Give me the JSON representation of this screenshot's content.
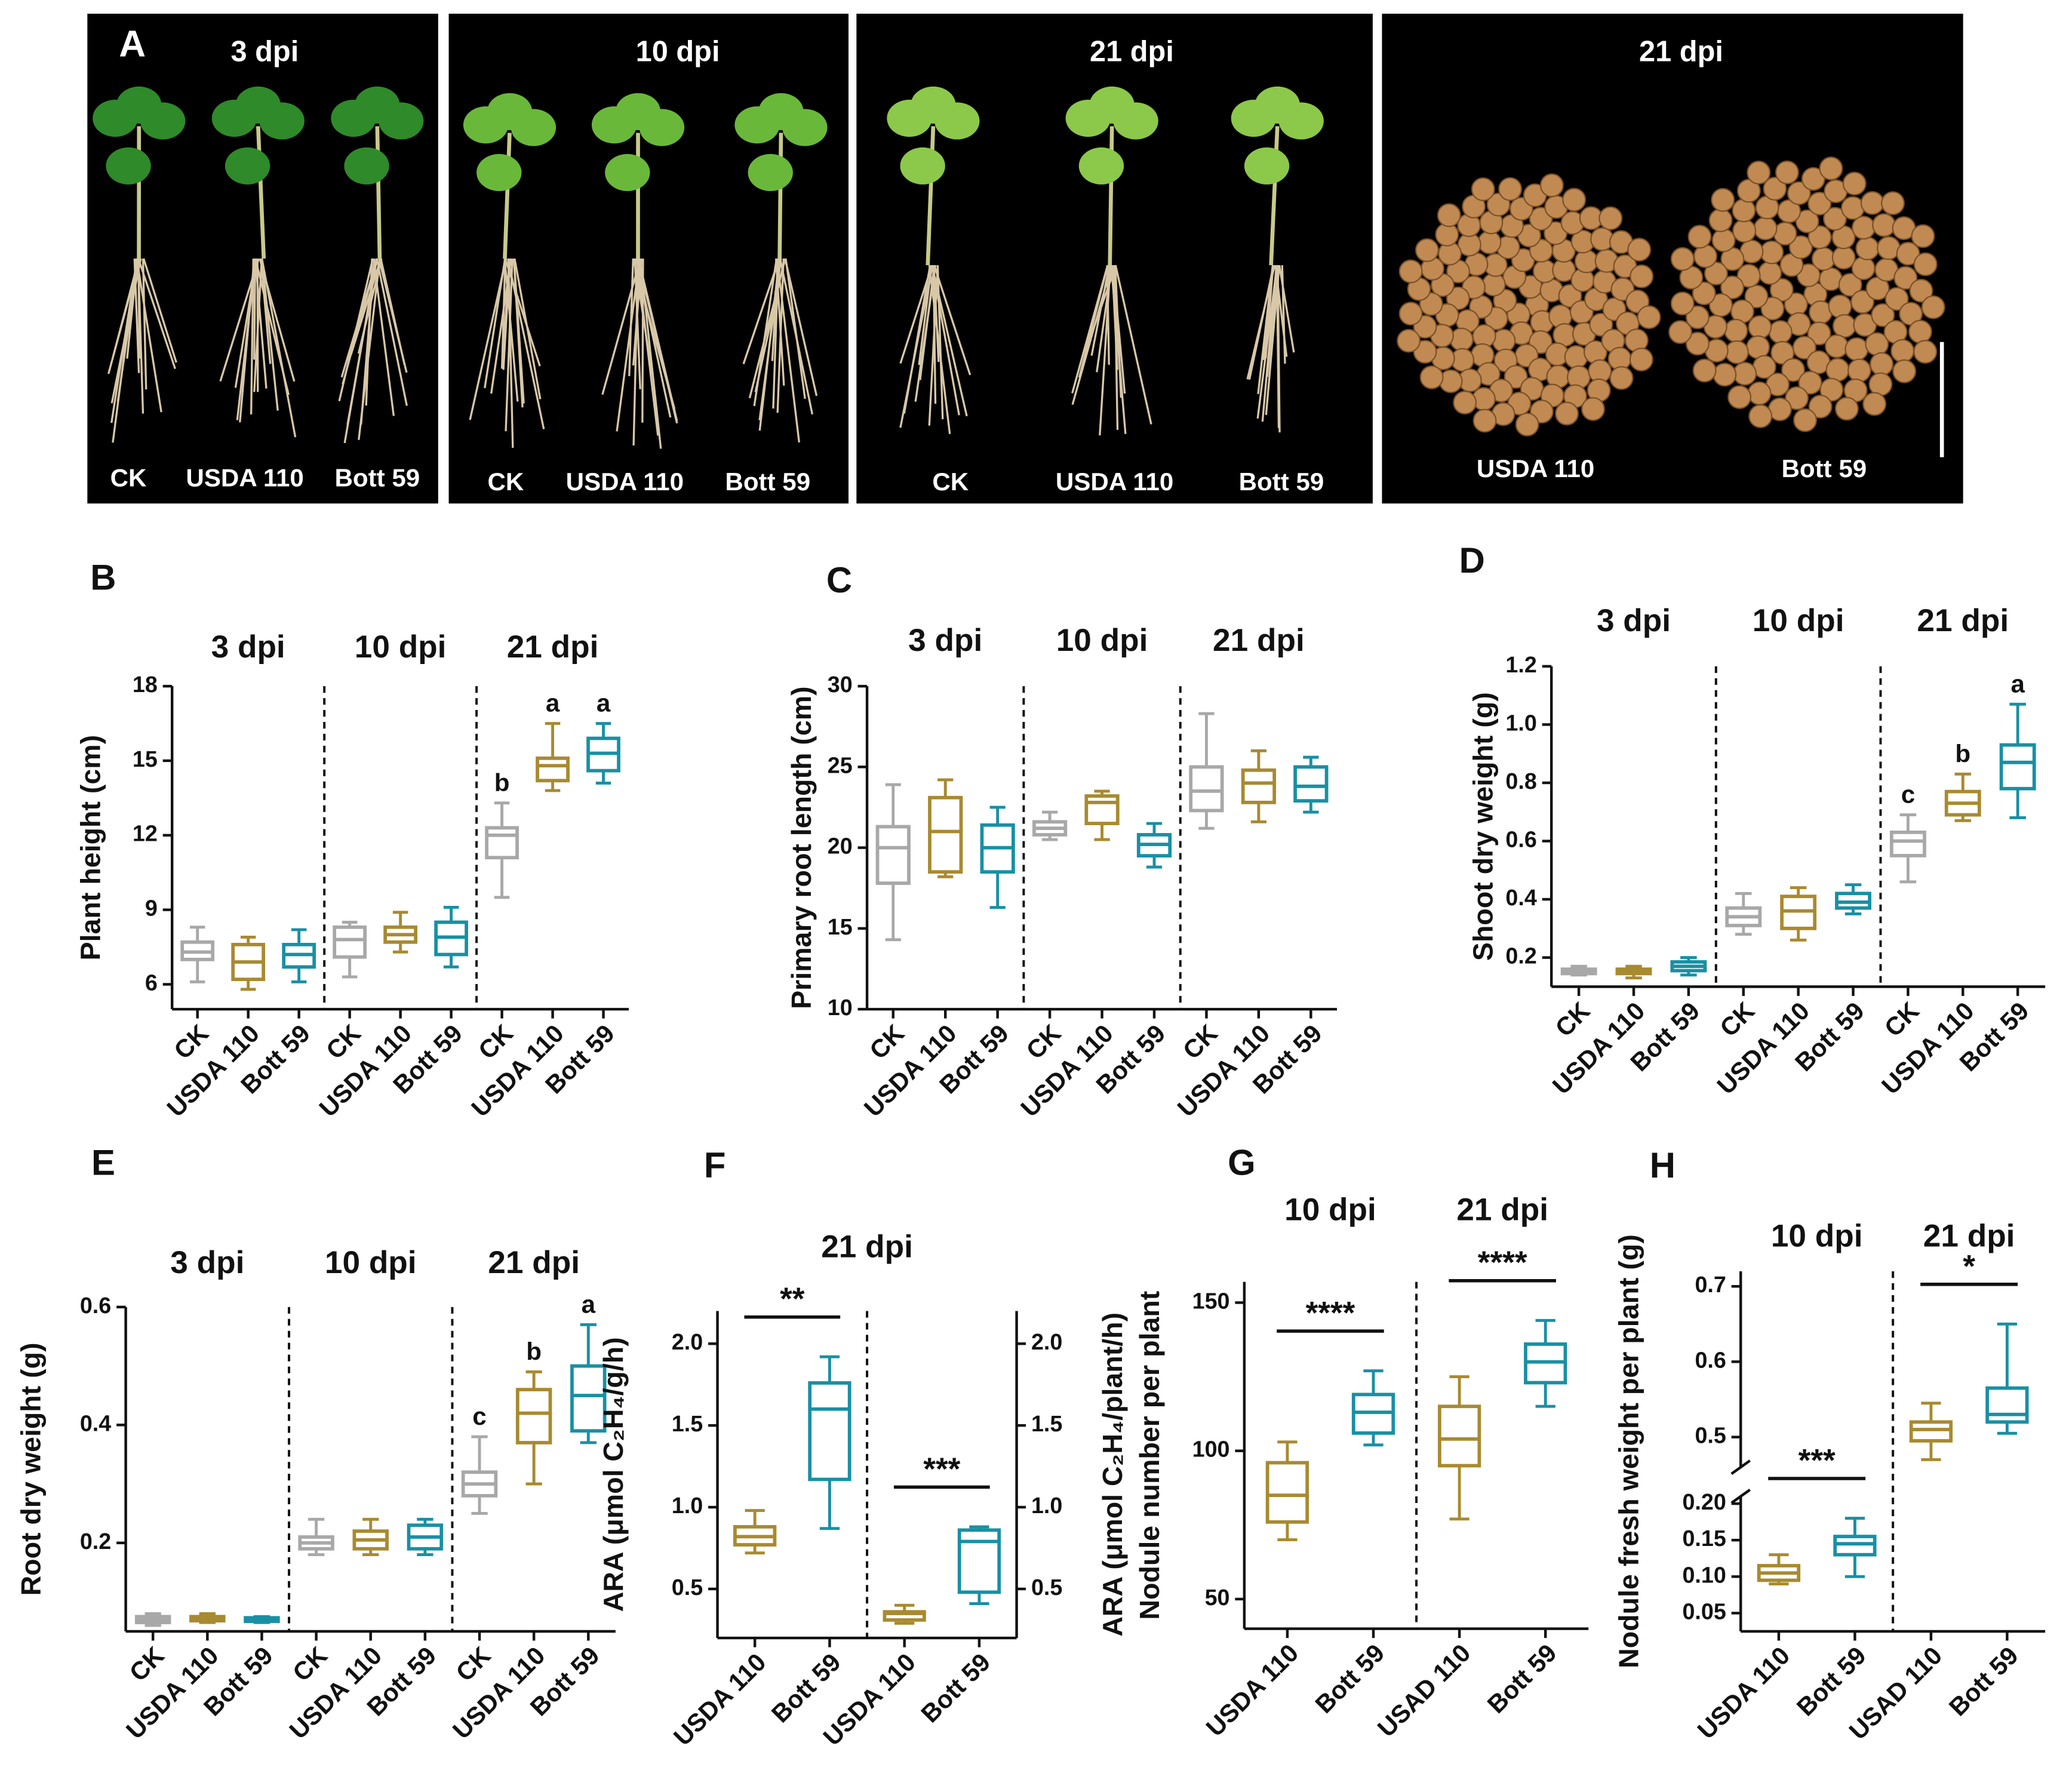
{
  "photos": {
    "label": "A",
    "panels": [
      {
        "title": "3 dpi",
        "labels": [
          "CK",
          "USDA 110",
          "Bott 59"
        ]
      },
      {
        "title": "10 dpi",
        "labels": [
          "CK",
          "USDA 110",
          "Bott 59"
        ]
      },
      {
        "title": "21 dpi",
        "labels": [
          "CK",
          "USDA 110",
          "Bott 59"
        ]
      },
      {
        "title": "21 dpi",
        "labels": [
          "USDA 110",
          "Bott 59"
        ]
      }
    ]
  },
  "chart_data": [
    {
      "type": "box",
      "label": "B",
      "ylabel": "Plant height (cm)",
      "groups": [
        "3 dpi",
        "10 dpi",
        "21 dpi"
      ],
      "categories": [
        "CK",
        "USDA 110",
        "Bott 59",
        "CK",
        "USDA 110",
        "Bott 59",
        "CK",
        "USDA 110",
        "Bott 59"
      ],
      "colors": [
        "#a8a8a8",
        "#a88a30",
        "#1890a4",
        "#a8a8a8",
        "#a88a30",
        "#1890a4",
        "#a8a8a8",
        "#a88a30",
        "#1890a4"
      ],
      "min": [
        6.1,
        5.8,
        6.1,
        6.3,
        7.3,
        6.7,
        9.5,
        13.8,
        14.1
      ],
      "q1": [
        7.0,
        6.2,
        6.7,
        7.1,
        7.7,
        7.2,
        11.1,
        14.2,
        14.6
      ],
      "median": [
        7.3,
        6.9,
        7.2,
        7.8,
        8.0,
        7.9,
        12.0,
        14.8,
        15.3
      ],
      "q3": [
        7.7,
        7.6,
        7.6,
        8.3,
        8.3,
        8.5,
        12.3,
        15.1,
        15.9
      ],
      "max": [
        8.3,
        7.9,
        8.2,
        8.5,
        8.9,
        9.1,
        13.3,
        16.5,
        16.5
      ],
      "letters": [
        null,
        null,
        null,
        null,
        null,
        null,
        "b",
        "a",
        "a"
      ],
      "ylim": [
        5,
        18
      ],
      "yticks": [
        6,
        9,
        12,
        15,
        18
      ]
    },
    {
      "type": "box",
      "label": "C",
      "ylabel": "Primary root length (cm)",
      "groups": [
        "3 dpi",
        "10 dpi",
        "21 dpi"
      ],
      "categories": [
        "CK",
        "USDA 110",
        "Bott 59",
        "CK",
        "USDA 110",
        "Bott 59",
        "CK",
        "USDA 110",
        "Bott 59"
      ],
      "colors": [
        "#a8a8a8",
        "#a88a30",
        "#1890a4",
        "#a8a8a8",
        "#a88a30",
        "#1890a4",
        "#a8a8a8",
        "#a88a30",
        "#1890a4"
      ],
      "min": [
        14.3,
        18.2,
        16.3,
        20.5,
        20.5,
        18.8,
        21.2,
        21.6,
        22.2
      ],
      "q1": [
        17.8,
        18.5,
        18.5,
        20.8,
        21.5,
        19.5,
        22.3,
        22.8,
        22.9
      ],
      "median": [
        20.0,
        21.0,
        20.0,
        21.2,
        22.8,
        20.2,
        23.5,
        24.0,
        23.8
      ],
      "q3": [
        21.3,
        23.1,
        21.4,
        21.6,
        23.2,
        20.8,
        25.0,
        24.8,
        25.0
      ],
      "max": [
        23.9,
        24.2,
        22.5,
        22.2,
        23.5,
        21.5,
        28.3,
        26.0,
        25.6
      ],
      "ylim": [
        10,
        30
      ],
      "yticks": [
        10,
        15,
        20,
        25,
        30
      ]
    },
    {
      "type": "box",
      "label": "D",
      "ylabel": "Shoot dry weight (g)",
      "groups": [
        "3 dpi",
        "10 dpi",
        "21 dpi"
      ],
      "categories": [
        "CK",
        "USDA 110",
        "Bott 59",
        "CK",
        "USDA 110",
        "Bott 59",
        "CK",
        "USDA 110",
        "Bott 59"
      ],
      "colors": [
        "#a8a8a8",
        "#a88a30",
        "#1890a4",
        "#a8a8a8",
        "#a88a30",
        "#1890a4",
        "#a8a8a8",
        "#a88a30",
        "#1890a4"
      ],
      "min": [
        0.14,
        0.13,
        0.14,
        0.28,
        0.26,
        0.35,
        0.46,
        0.67,
        0.68
      ],
      "q1": [
        0.145,
        0.145,
        0.155,
        0.31,
        0.3,
        0.37,
        0.55,
        0.69,
        0.78
      ],
      "median": [
        0.15,
        0.15,
        0.17,
        0.34,
        0.36,
        0.39,
        0.6,
        0.73,
        0.87
      ],
      "q3": [
        0.16,
        0.16,
        0.185,
        0.37,
        0.41,
        0.42,
        0.63,
        0.77,
        0.93
      ],
      "max": [
        0.17,
        0.17,
        0.2,
        0.42,
        0.44,
        0.45,
        0.69,
        0.83,
        1.07
      ],
      "letters": [
        null,
        null,
        null,
        null,
        null,
        null,
        "c",
        "b",
        "a"
      ],
      "ylim": [
        0.1,
        1.2
      ],
      "yticks": [
        0.2,
        0.4,
        0.6,
        0.8,
        {
          "value": 1,
          "label": "1.0"
        },
        1.2
      ]
    },
    {
      "type": "box",
      "label": "E",
      "ylabel": "Root dry weight (g)",
      "groups": [
        "3 dpi",
        "10 dpi",
        "21 dpi"
      ],
      "categories": [
        "CK",
        "USDA 110",
        "Bott 59",
        "CK",
        "USDA 110",
        "Bott 59",
        "CK",
        "USDA 110",
        "Bott 59"
      ],
      "colors": [
        "#a8a8a8",
        "#a88a30",
        "#1890a4",
        "#a8a8a8",
        "#a88a30",
        "#1890a4",
        "#a8a8a8",
        "#a88a30",
        "#1890a4"
      ],
      "min": [
        0.06,
        0.065,
        0.065,
        0.18,
        0.18,
        0.18,
        0.25,
        0.3,
        0.37
      ],
      "q1": [
        0.065,
        0.068,
        0.067,
        0.19,
        0.19,
        0.19,
        0.28,
        0.37,
        0.39
      ],
      "median": [
        0.07,
        0.07,
        0.07,
        0.2,
        0.205,
        0.21,
        0.3,
        0.42,
        0.45
      ],
      "q3": [
        0.075,
        0.075,
        0.073,
        0.21,
        0.22,
        0.23,
        0.32,
        0.46,
        0.5
      ],
      "max": [
        0.08,
        0.08,
        0.075,
        0.24,
        0.24,
        0.24,
        0.38,
        0.49,
        0.57
      ],
      "letters": [
        null,
        null,
        null,
        null,
        null,
        null,
        "c",
        "b",
        "a"
      ],
      "ylim": [
        0.05,
        0.6
      ],
      "yticks": [
        0.2,
        0.4,
        0.6
      ]
    },
    {
      "type": "box",
      "label": "F",
      "title": "21 dpi",
      "ylabel": "ARA (μmol C₂H₄/g/h)",
      "y2label": "ARA (μmol C₂H₄/plant/h)",
      "categories": [
        "USDA 110",
        "Bott 59",
        "USDA 110",
        "Bott 59"
      ],
      "axis": [
        "y",
        "y",
        "y2",
        "y2"
      ],
      "colors": [
        "#a88a30",
        "#1890a4",
        "#a88a30",
        "#1890a4"
      ],
      "min": [
        0.72,
        0.87,
        0.29,
        0.41
      ],
      "q1": [
        0.77,
        1.17,
        0.31,
        0.48
      ],
      "median": [
        0.82,
        1.6,
        0.35,
        0.79
      ],
      "q3": [
        0.88,
        1.76,
        0.36,
        0.86
      ],
      "max": [
        0.98,
        1.92,
        0.4,
        0.88
      ],
      "significance": [
        "**",
        "***"
      ],
      "ylim": [
        0.2,
        2.2
      ],
      "yticks": [
        0.5,
        {
          "value": 1,
          "label": "1.0"
        },
        1.5,
        {
          "value": 2,
          "label": "2.0"
        }
      ],
      "y2lim": [
        0.2,
        2.2
      ],
      "y2ticks": [
        0.5,
        {
          "value": 1,
          "label": "1.0"
        },
        1.5,
        {
          "value": 2,
          "label": "2.0"
        }
      ]
    },
    {
      "type": "box",
      "label": "G",
      "ylabel": "Nodule number per plant",
      "groups": [
        "10 dpi",
        "21 dpi"
      ],
      "categories": [
        "USDA 110",
        "Bott 59",
        "USAD 110",
        "Bott 59"
      ],
      "colors": [
        "#a88a30",
        "#1890a4",
        "#a88a30",
        "#1890a4"
      ],
      "min": [
        70,
        102,
        77,
        115
      ],
      "q1": [
        76,
        106,
        95,
        123
      ],
      "median": [
        85,
        113,
        104,
        130
      ],
      "q3": [
        96,
        119,
        115,
        136
      ],
      "max": [
        103,
        127,
        125,
        144
      ],
      "significance": [
        "****",
        "****"
      ],
      "ylim": [
        40,
        157
      ],
      "yticks": [
        50,
        100,
        150
      ]
    },
    {
      "type": "box",
      "label": "H",
      "ylabel": "Nodule fresh weight per plant (g)",
      "groups": [
        "10 dpi",
        "21 dpi"
      ],
      "categories": [
        "USDA 110",
        "Bott 59",
        "USAD 110",
        "Bott 59"
      ],
      "colors": [
        "#a88a30",
        "#1890a4",
        "#a88a30",
        "#1890a4"
      ],
      "min": [
        0.09,
        0.1,
        0.47,
        0.505
      ],
      "q1": [
        0.095,
        0.13,
        0.495,
        0.52
      ],
      "median": [
        0.105,
        0.145,
        0.51,
        0.53
      ],
      "q3": [
        0.115,
        0.155,
        0.52,
        0.565
      ],
      "max": [
        0.13,
        0.18,
        0.545,
        0.65
      ],
      "significance": [
        "***",
        "*"
      ],
      "ylim": [
        0.025,
        0.21
      ],
      "yticks": [
        0.05,
        {
          "value": 0.1,
          "label": "0.10"
        },
        0.15,
        {
          "value": 0.2,
          "label": "0.20"
        }
      ],
      "ylim_upper": [
        0.46,
        0.72
      ],
      "yticks_upper": [
        0.5,
        0.6,
        0.7
      ]
    }
  ]
}
